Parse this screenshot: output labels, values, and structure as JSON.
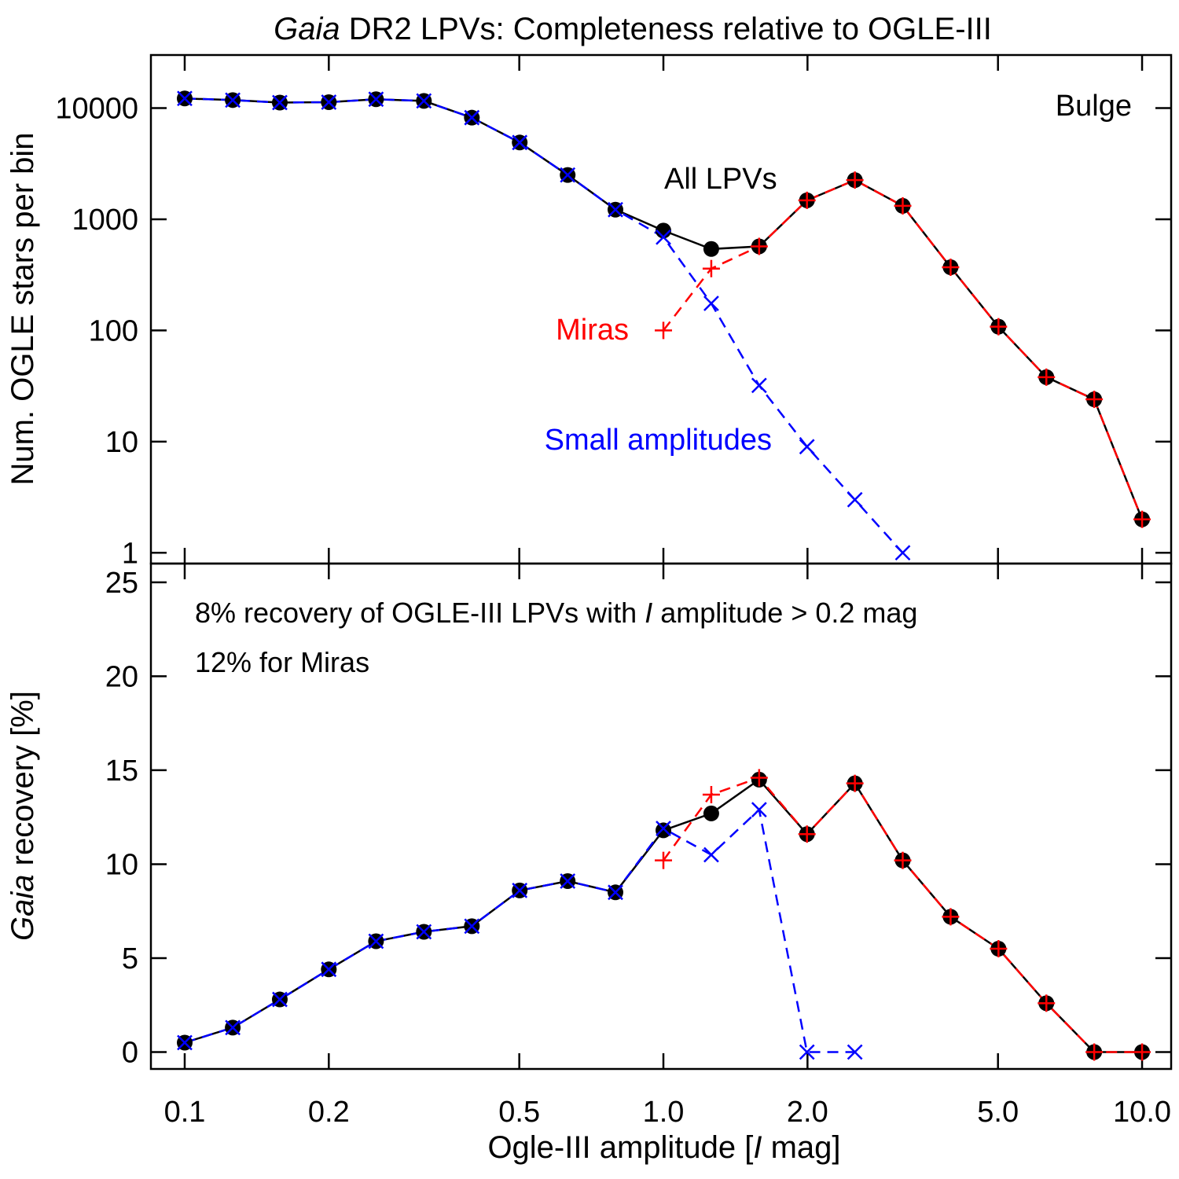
{
  "chart_data": {
    "type": "line",
    "title": {
      "prefix": "Gaia",
      "rest": " DR2 LPVs: Completeness relative to OGLE-III"
    },
    "x": [
      0.1,
      0.126,
      0.158,
      0.2,
      0.251,
      0.316,
      0.398,
      0.501,
      0.631,
      0.794,
      1.0,
      1.259,
      1.585,
      1.995,
      2.512,
      3.162,
      3.981,
      5.012,
      6.31,
      7.943,
      10.0
    ],
    "xlabel": {
      "before": "Ogle-III amplitude  [",
      "italic": "I",
      "after": " mag]"
    },
    "xlim": [
      0.085,
      11.5
    ],
    "xscale": "log",
    "xticks": [
      {
        "value": 0.1,
        "label": "0.1"
      },
      {
        "value": 0.2,
        "label": "0.2"
      },
      {
        "value": 0.5,
        "label": "0.5"
      },
      {
        "value": 1.0,
        "label": "1.0"
      },
      {
        "value": 2.0,
        "label": "2.0"
      },
      {
        "value": 5.0,
        "label": "5.0"
      },
      {
        "value": 10.0,
        "label": "10.0"
      }
    ],
    "panels": [
      {
        "id": "top",
        "ylabel": "Num. OGLE stars per bin",
        "yscale": "log",
        "ylim": [
          0.8,
          30000
        ],
        "yticks": [
          {
            "value": 1,
            "label": "1"
          },
          {
            "value": 10,
            "label": "10"
          },
          {
            "value": 100,
            "label": "100"
          },
          {
            "value": 1000,
            "label": "1000"
          },
          {
            "value": 10000,
            "label": "10000"
          }
        ],
        "region_label": "Bulge",
        "series": [
          {
            "name": "All LPVs",
            "color": "#000000",
            "dash": false,
            "marker": "dot",
            "values": [
              12200,
              11800,
              11200,
              11300,
              12000,
              11600,
              8200,
              4900,
              2500,
              1220,
              790,
              540,
              570,
              1480,
              2250,
              1320,
              370,
              108,
              38,
              24,
              2
            ]
          },
          {
            "name": "Miras",
            "color": "#ff0000",
            "dash": true,
            "marker": "plus",
            "values": [
              null,
              null,
              null,
              null,
              null,
              null,
              null,
              null,
              null,
              null,
              100,
              360,
              570,
              1480,
              2250,
              1320,
              370,
              108,
              38,
              24,
              2
            ]
          },
          {
            "name": "Small amplitudes",
            "color": "#0000ff",
            "dash": true,
            "marker": "x",
            "values": [
              12200,
              11800,
              11200,
              11300,
              12000,
              11600,
              8200,
              4900,
              2500,
              1220,
              690,
              175,
              32,
              9,
              3,
              1,
              null,
              null,
              null,
              null,
              null
            ]
          }
        ]
      },
      {
        "id": "bottom",
        "ylabel": {
          "italic": "Gaia",
          "rest": " recovery [%]"
        },
        "yscale": "linear",
        "ylim": [
          -0.9,
          26.0
        ],
        "yticks": [
          {
            "value": 0,
            "label": "0"
          },
          {
            "value": 5,
            "label": "5"
          },
          {
            "value": 10,
            "label": "10"
          },
          {
            "value": 15,
            "label": "15"
          },
          {
            "value": 20,
            "label": "20"
          },
          {
            "value": 25,
            "label": "25"
          }
        ],
        "series": [
          {
            "name": "All LPVs",
            "color": "#000000",
            "dash": false,
            "marker": "dot",
            "values": [
              0.5,
              1.3,
              2.8,
              4.4,
              5.9,
              6.4,
              6.7,
              8.6,
              9.1,
              8.5,
              11.8,
              12.7,
              14.5,
              11.6,
              14.3,
              10.2,
              7.2,
              5.5,
              2.6,
              0.0,
              0.0
            ]
          },
          {
            "name": "Miras",
            "color": "#ff0000",
            "dash": true,
            "marker": "plus",
            "values": [
              null,
              null,
              null,
              null,
              null,
              null,
              null,
              null,
              null,
              null,
              10.2,
              13.7,
              14.6,
              11.6,
              14.3,
              10.2,
              7.2,
              5.5,
              2.6,
              0.0,
              0.0
            ]
          },
          {
            "name": "Small amplitudes",
            "color": "#0000ff",
            "dash": true,
            "marker": "x",
            "values": [
              0.5,
              1.3,
              2.8,
              4.4,
              5.9,
              6.4,
              6.7,
              8.6,
              9.1,
              8.5,
              11.9,
              10.5,
              12.9,
              0.0,
              0.0,
              null,
              null,
              null,
              null,
              null,
              null
            ]
          }
        ]
      }
    ],
    "annotations": {
      "all_lpvs": "All LPVs",
      "miras": "Miras",
      "small_amplitudes": "Small amplitudes",
      "recovery_note": {
        "before": "8% recovery of OGLE-III LPVs with ",
        "italic": "I",
        "after": " amplitude > 0.2 mag"
      },
      "miras_note": "12% for Miras"
    }
  }
}
